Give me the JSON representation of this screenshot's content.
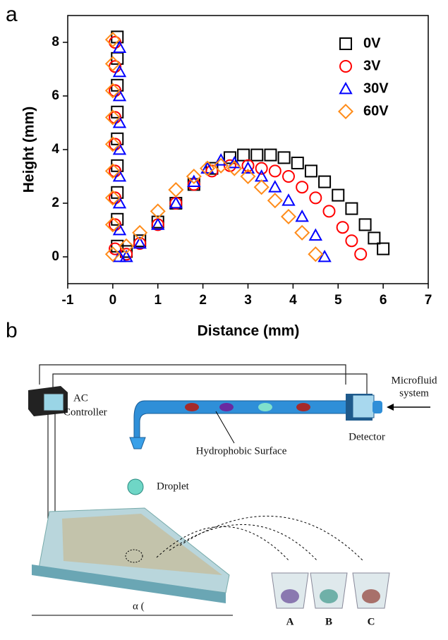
{
  "panel_labels": [
    "a",
    "b"
  ],
  "chart_data": {
    "type": "scatter",
    "x_label": "Distance (mm)",
    "y_label": "Height (mm)",
    "xlim": [
      -1,
      7
    ],
    "xticks": [
      -1,
      0,
      1,
      2,
      3,
      4,
      5,
      6,
      7
    ],
    "ylim": [
      -1,
      9
    ],
    "yticks": [
      0,
      2,
      4,
      6,
      8
    ],
    "legend": "upper right",
    "series": [
      {
        "name": "0V",
        "color": "#000000",
        "marker": "square",
        "x": [
          0.1,
          0.1,
          0.1,
          0.1,
          0.1,
          0.1,
          0.1,
          0.1,
          0.1,
          0.3,
          0.6,
          1.0,
          1.4,
          1.8,
          2.2,
          2.6,
          2.9,
          3.2,
          3.5,
          3.8,
          4.1,
          4.4,
          4.7,
          5.0,
          5.3,
          5.6,
          5.8,
          6.0
        ],
        "values": [
          8.2,
          7.4,
          6.4,
          5.4,
          4.4,
          3.4,
          2.4,
          1.4,
          0.4,
          0.2,
          0.6,
          1.3,
          2.0,
          2.7,
          3.3,
          3.7,
          3.8,
          3.8,
          3.8,
          3.7,
          3.5,
          3.2,
          2.8,
          2.3,
          1.8,
          1.2,
          0.7,
          0.3
        ]
      },
      {
        "name": "3V",
        "color": "#ff0000",
        "marker": "circle",
        "x": [
          0.05,
          0.05,
          0.05,
          0.05,
          0.05,
          0.05,
          0.05,
          0.05,
          0.05,
          0.3,
          0.6,
          1.0,
          1.4,
          1.8,
          2.2,
          2.6,
          3.0,
          3.3,
          3.6,
          3.9,
          4.2,
          4.5,
          4.8,
          5.1,
          5.3,
          5.5
        ],
        "values": [
          8.0,
          7.1,
          6.2,
          5.2,
          4.2,
          3.2,
          2.2,
          1.2,
          0.3,
          0.1,
          0.5,
          1.2,
          2.0,
          2.7,
          3.2,
          3.4,
          3.4,
          3.3,
          3.2,
          3.0,
          2.6,
          2.2,
          1.7,
          1.1,
          0.6,
          0.1
        ]
      },
      {
        "name": "30V",
        "color": "#0000ff",
        "marker": "triangle",
        "x": [
          0.15,
          0.15,
          0.15,
          0.15,
          0.15,
          0.15,
          0.15,
          0.15,
          0.15,
          0.3,
          0.6,
          1.0,
          1.4,
          1.8,
          2.1,
          2.4,
          2.7,
          3.0,
          3.3,
          3.6,
          3.9,
          4.2,
          4.5,
          4.7
        ],
        "values": [
          7.8,
          6.9,
          6.0,
          5.0,
          4.0,
          3.0,
          2.0,
          1.0,
          0.0,
          0.0,
          0.5,
          1.2,
          2.0,
          2.8,
          3.3,
          3.6,
          3.5,
          3.3,
          3.0,
          2.6,
          2.1,
          1.5,
          0.8,
          0.0
        ]
      },
      {
        "name": "60V",
        "color": "#ff8c1a",
        "marker": "diamond",
        "x": [
          0.0,
          0.0,
          0.0,
          0.0,
          0.0,
          0.0,
          0.0,
          0.0,
          0.0,
          0.3,
          0.6,
          1.0,
          1.4,
          1.8,
          2.1,
          2.4,
          2.7,
          3.0,
          3.3,
          3.6,
          3.9,
          4.2,
          4.5
        ],
        "values": [
          8.1,
          7.2,
          6.2,
          5.2,
          4.2,
          3.2,
          2.2,
          1.2,
          0.1,
          0.4,
          0.9,
          1.7,
          2.5,
          3.0,
          3.3,
          3.4,
          3.3,
          3.0,
          2.6,
          2.1,
          1.5,
          0.9,
          0.1
        ]
      }
    ]
  },
  "diagram": {
    "controller": [
      "AC",
      "Controller"
    ],
    "microfluid": [
      "Microfluid",
      "system"
    ],
    "detector": "Detector",
    "surface": "Hydrophobic Surface",
    "droplet": "Droplet",
    "angle": "α (",
    "cups": [
      "A",
      "B",
      "C"
    ]
  }
}
